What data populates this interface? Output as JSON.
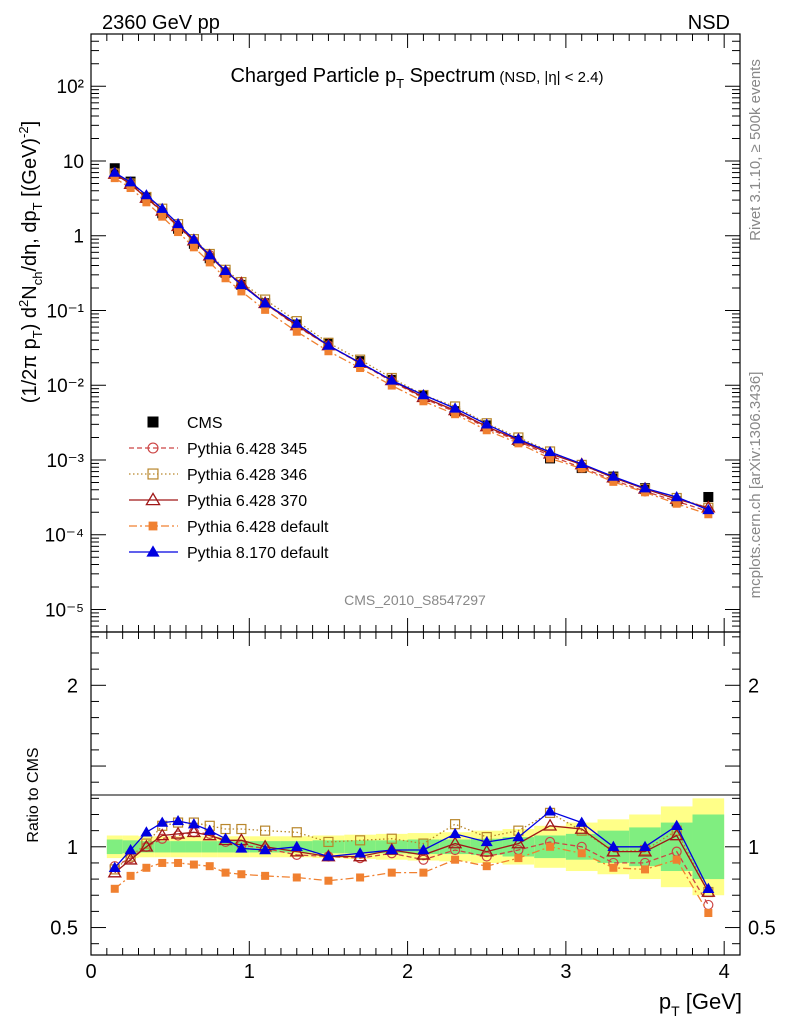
{
  "header": {
    "energy": "2360 GeV pp",
    "process": "NSD"
  },
  "rivet_text": "Rivet 3.1.10, ≥ 500k events",
  "mcplots_text": "mcplots.cern.ch [arXiv:1306.3436]",
  "analysis_label": "CMS_2010_S8547297",
  "chart_data": [
    {
      "type": "line",
      "panel": "main",
      "title": "Charged Particle pT Spectrum (NSD, |η| < 2.4)",
      "ylabel": "(1/2π pT) d²Nch/dη, dpT [(GeV)⁻²]",
      "yscale": "log",
      "ylim": [
        5e-06,
        500
      ],
      "xlim": [
        0,
        4.1
      ],
      "y_tick_labels": [
        "10⁻⁵",
        "10⁻⁴",
        "10⁻³",
        "10⁻²",
        "10⁻¹",
        "1",
        "10",
        "10²"
      ],
      "x": [
        0.15,
        0.25,
        0.35,
        0.45,
        0.55,
        0.65,
        0.75,
        0.85,
        0.95,
        1.1,
        1.3,
        1.5,
        1.7,
        1.9,
        2.1,
        2.3,
        2.5,
        2.7,
        2.9,
        3.1,
        3.3,
        3.5,
        3.7,
        3.9
      ],
      "series": [
        {
          "name": "CMS",
          "values": [
            8.0,
            5.3,
            3.2,
            2.0,
            1.24,
            0.78,
            0.5,
            0.32,
            0.22,
            0.125,
            0.065,
            0.036,
            0.021,
            0.0118,
            0.0073,
            0.0045,
            0.0029,
            0.0018,
            0.00105,
            0.00078,
            0.0006,
            0.00042,
            0.00028,
            0.00032
          ],
          "color": "#000000",
          "marker": "square"
        },
        {
          "name": "Pythia 6.428 345",
          "values": [
            7.0,
            4.9,
            3.2,
            2.1,
            1.32,
            0.85,
            0.55,
            0.33,
            0.22,
            0.125,
            0.061,
            0.034,
            0.0196,
            0.0113,
            0.0067,
            0.0044,
            0.0027,
            0.00178,
            0.00114,
            0.00079,
            0.00054,
            0.00038,
            0.00028,
            0.000205
          ],
          "color": "#cc4444",
          "marker": "circle-open",
          "dash": "5,3"
        },
        {
          "name": "Pythia 6.428 346",
          "values": [
            6.8,
            5.0,
            3.3,
            2.3,
            1.43,
            0.9,
            0.57,
            0.35,
            0.24,
            0.14,
            0.072,
            0.037,
            0.022,
            0.0125,
            0.0074,
            0.0052,
            0.0031,
            0.002,
            0.0013,
            0.00086,
            0.00058,
            0.00041,
            0.00031,
            0.00023
          ],
          "color": "#b8862b",
          "marker": "square-open",
          "dash": "1.5,2.5"
        },
        {
          "name": "Pythia 6.428 370",
          "values": [
            6.7,
            4.9,
            3.2,
            2.15,
            1.34,
            0.86,
            0.54,
            0.33,
            0.23,
            0.125,
            0.063,
            0.034,
            0.0198,
            0.0116,
            0.0069,
            0.0046,
            0.0028,
            0.00185,
            0.00121,
            0.00087,
            0.00058,
            0.00041,
            0.0003,
            0.00023
          ],
          "color": "#a01818",
          "marker": "triangle-open",
          "dash": ""
        },
        {
          "name": "Pythia 6.428 default",
          "values": [
            5.9,
            4.35,
            2.8,
            1.8,
            1.12,
            0.7,
            0.44,
            0.27,
            0.18,
            0.102,
            0.052,
            0.0285,
            0.017,
            0.0099,
            0.0061,
            0.0041,
            0.0025,
            0.00167,
            0.00105,
            0.00077,
            0.00051,
            0.00037,
            0.00026,
            0.000188
          ],
          "color": "#f08030",
          "marker": "square-small",
          "dash": "8,3,2,3"
        },
        {
          "name": "Pythia 8.170 default",
          "values": [
            7.0,
            5.2,
            3.5,
            2.3,
            1.44,
            0.89,
            0.55,
            0.34,
            0.22,
            0.125,
            0.067,
            0.034,
            0.02,
            0.0116,
            0.0074,
            0.0049,
            0.003,
            0.0019,
            0.00128,
            0.00089,
            0.0006,
            0.00042,
            0.00032,
            0.000215
          ],
          "color": "#0000e0",
          "marker": "triangle",
          "dash": ""
        }
      ]
    },
    {
      "type": "line",
      "panel": "ratio",
      "ylabel": "Ratio to CMS",
      "xlabel": "pT [GeV]",
      "ylim": [
        0.33,
        2.33
      ],
      "xlim": [
        0,
        4.1
      ],
      "x_tick_labels": [
        "0",
        "1",
        "2",
        "3",
        "4"
      ],
      "y_tick_labels": [
        "0.5",
        "1",
        "2"
      ],
      "bands": {
        "bins": [
          [
            0.1,
            0.2
          ],
          [
            0.2,
            0.3
          ],
          [
            0.3,
            0.4
          ],
          [
            0.4,
            0.5
          ],
          [
            0.5,
            0.6
          ],
          [
            0.6,
            0.7
          ],
          [
            0.7,
            0.8
          ],
          [
            0.8,
            0.9
          ],
          [
            0.9,
            1.0
          ],
          [
            1.0,
            1.2
          ],
          [
            1.2,
            1.4
          ],
          [
            1.4,
            1.6
          ],
          [
            1.6,
            1.8
          ],
          [
            1.8,
            2.0
          ],
          [
            2.0,
            2.2
          ],
          [
            2.2,
            2.4
          ],
          [
            2.4,
            2.6
          ],
          [
            2.6,
            2.8
          ],
          [
            2.8,
            3.0
          ],
          [
            3.0,
            3.2
          ],
          [
            3.2,
            3.4
          ],
          [
            3.4,
            3.6
          ],
          [
            3.6,
            3.8
          ],
          [
            3.8,
            4.0
          ]
        ],
        "stat": [
          0.045,
          0.04,
          0.035,
          0.035,
          0.035,
          0.035,
          0.035,
          0.035,
          0.035,
          0.035,
          0.035,
          0.04,
          0.04,
          0.04,
          0.045,
          0.045,
          0.05,
          0.06,
          0.07,
          0.08,
          0.1,
          0.12,
          0.15,
          0.2
        ],
        "total": [
          0.07,
          0.07,
          0.065,
          0.065,
          0.065,
          0.065,
          0.065,
          0.065,
          0.065,
          0.065,
          0.065,
          0.07,
          0.075,
          0.08,
          0.085,
          0.09,
          0.1,
          0.11,
          0.13,
          0.15,
          0.17,
          0.2,
          0.25,
          0.3
        ],
        "stat_color": "#80ee80",
        "total_color": "#ffff88"
      },
      "x": [
        0.15,
        0.25,
        0.35,
        0.45,
        0.55,
        0.65,
        0.75,
        0.85,
        0.95,
        1.1,
        1.3,
        1.5,
        1.7,
        1.9,
        2.1,
        2.3,
        2.5,
        2.7,
        2.9,
        3.1,
        3.3,
        3.5,
        3.7,
        3.9
      ],
      "series": [
        {
          "name": "Pythia 6.428 345",
          "values": [
            0.88,
            0.93,
            1.0,
            1.05,
            1.07,
            1.09,
            1.08,
            1.03,
            1.01,
            0.99,
            0.95,
            0.94,
            0.93,
            0.96,
            0.92,
            0.98,
            0.94,
            0.98,
            1.03,
            1.0,
            0.9,
            0.9,
            0.97,
            0.64
          ],
          "color": "#cc4444",
          "marker": "circle-open",
          "dash": "5,3"
        },
        {
          "name": "Pythia 6.428 346",
          "values": [
            0.86,
            0.94,
            1.02,
            1.13,
            1.15,
            1.15,
            1.13,
            1.11,
            1.11,
            1.1,
            1.09,
            1.03,
            1.04,
            1.05,
            1.02,
            1.14,
            1.06,
            1.1,
            1.21,
            1.1,
            0.97,
            0.98,
            1.1,
            0.72
          ],
          "color": "#b8862b",
          "marker": "square-open",
          "dash": "1.5,2.5"
        },
        {
          "name": "Pythia 6.428 370",
          "values": [
            0.84,
            0.92,
            1.0,
            1.07,
            1.08,
            1.09,
            1.07,
            1.04,
            1.04,
            1.0,
            0.97,
            0.94,
            0.94,
            0.98,
            0.95,
            1.02,
            0.97,
            1.02,
            1.13,
            1.11,
            0.97,
            0.97,
            1.07,
            0.72
          ],
          "color": "#a01818",
          "marker": "triangle-open",
          "dash": ""
        },
        {
          "name": "Pythia 6.428 default",
          "values": [
            0.74,
            0.82,
            0.87,
            0.9,
            0.9,
            0.89,
            0.88,
            0.84,
            0.83,
            0.82,
            0.81,
            0.79,
            0.81,
            0.84,
            0.84,
            0.92,
            0.88,
            0.93,
            1.0,
            0.96,
            0.87,
            0.86,
            0.92,
            0.59
          ],
          "color": "#f08030",
          "marker": "square-small",
          "dash": "8,3,2,3"
        },
        {
          "name": "Pythia 8.170 default",
          "values": [
            0.87,
            0.98,
            1.09,
            1.15,
            1.16,
            1.14,
            1.1,
            1.05,
            0.99,
            0.98,
            1.0,
            0.94,
            0.96,
            0.98,
            0.98,
            1.08,
            1.03,
            1.06,
            1.22,
            1.15,
            1.0,
            1.0,
            1.13,
            0.74
          ],
          "color": "#0000e0",
          "marker": "triangle",
          "dash": ""
        }
      ]
    }
  ]
}
